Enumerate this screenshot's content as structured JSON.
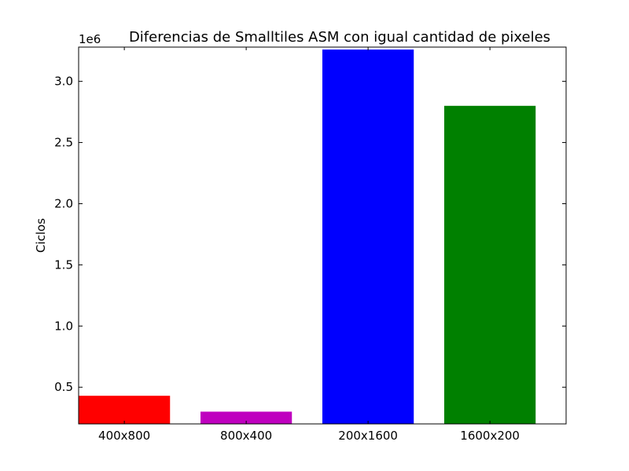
{
  "chart_data": {
    "type": "bar",
    "title": "Diferencias de Smalltiles ASM con igual cantidad de pixeles",
    "xlabel": "",
    "ylabel": "Ciclos",
    "y_offset_label": "1e6",
    "categories": [
      "400x800",
      "800x400",
      "200x1600",
      "1600x200"
    ],
    "values": [
      430000,
      300000,
      3260000,
      2800000
    ],
    "colors": [
      "#ff0000",
      "#bf00bf",
      "#0000ff",
      "#008000"
    ],
    "ylim": [
      200000,
      3280000
    ],
    "yticks": [
      500000,
      1000000,
      1500000,
      2000000,
      2500000,
      3000000
    ],
    "ytick_labels": [
      "0.5",
      "1.0",
      "1.5",
      "2.0",
      "2.5",
      "3.0"
    ],
    "grid": false,
    "legend": "none"
  }
}
